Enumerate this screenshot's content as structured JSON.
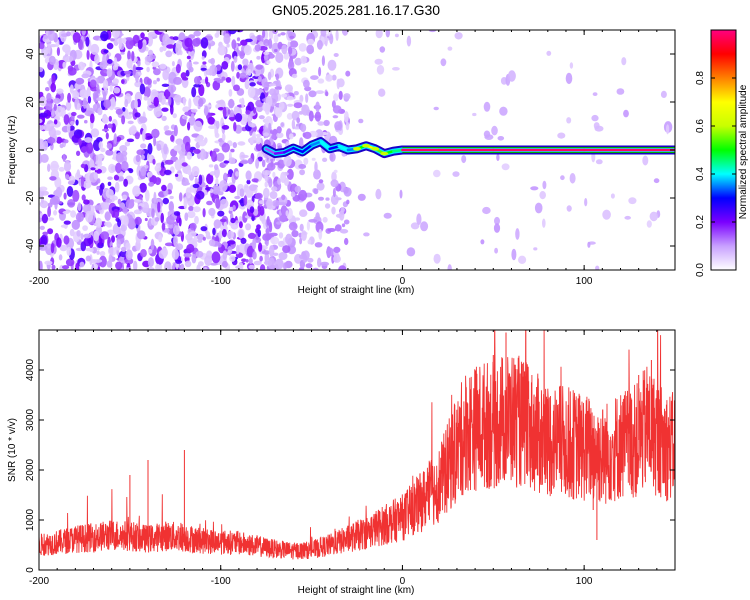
{
  "title": "GN05.2025.281.16.17.G30",
  "chart_data": [
    {
      "type": "heatmap",
      "name": "spectrogram",
      "xlabel": "Height of straight line (km)",
      "ylabel": "Frequency (Hz)",
      "xlim": [
        -200,
        150
      ],
      "ylim": [
        -50,
        50
      ],
      "xticks": [
        -200,
        -100,
        0,
        100
      ],
      "yticks": [
        40,
        20,
        0,
        -20,
        -40
      ],
      "grid": false,
      "line": {
        "frequency_hz": 0,
        "x": [
          -75,
          -70,
          -65,
          -60,
          -55,
          -50,
          -45,
          -40,
          -35,
          -30,
          -25,
          -20,
          -15,
          -10,
          -5,
          0,
          20,
          50,
          100,
          150
        ],
        "y": [
          0.5,
          -1.5,
          -1,
          0.8,
          -0.8,
          2,
          3.5,
          0.5,
          1.5,
          0,
          0.5,
          1.8,
          0.5,
          -1.5,
          -0.5,
          0,
          0,
          0,
          0,
          0
        ],
        "amplitude": [
          0.15,
          0.2,
          0.25,
          0.3,
          0.3,
          0.35,
          0.4,
          0.3,
          0.4,
          0.35,
          0.5,
          0.7,
          0.55,
          0.5,
          0.45,
          0.98,
          0.98,
          0.98,
          0.98,
          0.98
        ]
      },
      "noise": {
        "dense_region_x": [
          -200,
          -75
        ],
        "sparse_region_x": [
          -75,
          -30
        ],
        "amplitude_range": [
          0.0,
          0.25
        ]
      }
    },
    {
      "type": "colorbar",
      "name": "colorbar",
      "label": "Normalized spectral amplitude",
      "range": [
        0.0,
        1.0
      ],
      "ticks": [
        "0.0",
        "0.2",
        "0.4",
        "0.6",
        "0.8"
      ],
      "tick_values": [
        0.0,
        0.2,
        0.4,
        0.6,
        0.8
      ],
      "colors": [
        "#ffffff",
        "#c8a0ff",
        "#7a00ff",
        "#0000ff",
        "#00ffff",
        "#00ff00",
        "#c8ff00",
        "#ffff00",
        "#ff8000",
        "#ff0000",
        "#ff0080"
      ]
    },
    {
      "type": "line",
      "name": "snr",
      "xlabel": "Height of straight line (km)",
      "ylabel": "SNR (10 * v/v)",
      "xlim": [
        -200,
        150
      ],
      "ylim": [
        0,
        4800
      ],
      "xticks": [
        -200,
        -100,
        0,
        100
      ],
      "yticks": [
        0,
        1000,
        2000,
        3000,
        4000
      ],
      "color": "#f03232",
      "x": [
        -200,
        -190,
        -180,
        -170,
        -160,
        -150,
        -140,
        -130,
        -120,
        -110,
        -100,
        -90,
        -80,
        -70,
        -60,
        -50,
        -40,
        -30,
        -20,
        -10,
        0,
        10,
        20,
        30,
        35,
        40,
        45,
        50,
        55,
        60,
        65,
        70,
        80,
        90,
        100,
        105,
        110,
        120,
        130,
        135,
        140,
        145,
        150
      ],
      "y": [
        500,
        550,
        620,
        650,
        700,
        680,
        620,
        680,
        650,
        580,
        560,
        540,
        480,
        420,
        380,
        400,
        500,
        620,
        750,
        900,
        1050,
        1350,
        1700,
        2400,
        2800,
        2850,
        2900,
        2900,
        3000,
        3050,
        2950,
        2800,
        2600,
        2550,
        2450,
        2400,
        2300,
        2500,
        2600,
        2900,
        2650,
        2500,
        2450
      ],
      "spikes": [
        {
          "x": -140,
          "y": 2200
        },
        {
          "x": -120,
          "y": 2400
        },
        {
          "x": -150,
          "y": 1900
        },
        {
          "x": 57,
          "y": 4750
        },
        {
          "x": 50,
          "y": 4300
        },
        {
          "x": 137,
          "y": 4200
        },
        {
          "x": 130,
          "y": 3900
        },
        {
          "x": 107,
          "y": 600
        },
        {
          "x": 105,
          "y": 1200
        }
      ],
      "noise_amplitude": 0.45
    }
  ]
}
